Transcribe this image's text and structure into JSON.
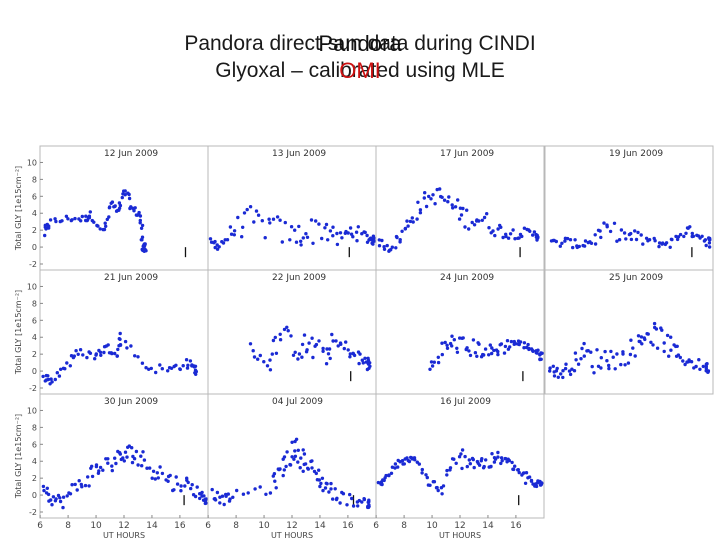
{
  "slide": {
    "title_line1": "Pandora direct-sun data during CINDI",
    "title_line2": "Glyoxal – calibrated using MLE",
    "overlay1": "Pandora",
    "overlay2": "OMI",
    "overlay1_color": "#111111",
    "overlay2_color": "#cc1111"
  },
  "chart_data": {
    "type": "scatter",
    "ylabel": "Total GLY [1e15cm⁻²]",
    "xlabel": "UT HOURS",
    "xlim": [
      6,
      18
    ],
    "ylim": [
      -2,
      11
    ],
    "y_ticks": [
      -2,
      0,
      2,
      4,
      6,
      8,
      10
    ],
    "x_ticks": [
      6,
      8,
      10,
      12,
      14,
      16
    ],
    "point_color": "#1a2ad4",
    "panels": [
      {
        "title": "12 Jun 2009",
        "omi": 16.4,
        "anchors": [
          [
            6.3,
            1.6,
            0.6
          ],
          [
            6.6,
            2.8,
            0.6
          ],
          [
            8.0,
            3.4,
            0.4
          ],
          [
            9.2,
            3.3,
            0.4
          ],
          [
            9.6,
            3.8,
            0.4
          ],
          [
            10.6,
            1.8,
            0.4
          ],
          [
            11.1,
            5.2,
            0.5
          ],
          [
            11.6,
            4.0,
            0.5
          ],
          [
            12.1,
            6.7,
            0.5
          ],
          [
            12.6,
            4.4,
            0.5
          ],
          [
            13.2,
            3.8,
            0.5
          ],
          [
            13.3,
            0.4,
            0.6
          ],
          [
            13.5,
            -0.2,
            0.6
          ]
        ]
      },
      {
        "title": "13 Jun 2009",
        "omi": 16.1,
        "anchors": [
          [
            6.2,
            0.6,
            0.6
          ],
          [
            6.8,
            0.2,
            0.6
          ],
          [
            7.8,
            2.0,
            1.2
          ],
          [
            9.0,
            3.2,
            1.6
          ],
          [
            10.5,
            2.3,
            1.8
          ],
          [
            12.0,
            1.4,
            1.4
          ],
          [
            13.0,
            1.6,
            1.6
          ],
          [
            14.3,
            2.5,
            1.8
          ],
          [
            15.3,
            0.8,
            0.8
          ],
          [
            16.3,
            2.0,
            1.0
          ],
          [
            17.2,
            1.2,
            0.8
          ],
          [
            17.8,
            0.8,
            0.5
          ]
        ]
      },
      {
        "title": "17 Jun 2009",
        "omi": 16.3,
        "anchors": [
          [
            6.2,
            0.6,
            0.5
          ],
          [
            7.0,
            -0.1,
            0.6
          ],
          [
            7.8,
            1.2,
            0.8
          ],
          [
            8.6,
            3.6,
            1.0
          ],
          [
            9.5,
            5.5,
            1.0
          ],
          [
            10.5,
            6.2,
            0.9
          ],
          [
            11.5,
            4.8,
            1.2
          ],
          [
            12.4,
            3.5,
            1.3
          ],
          [
            13.4,
            3.4,
            1.5
          ],
          [
            14.5,
            2.2,
            0.9
          ],
          [
            15.5,
            1.6,
            0.7
          ],
          [
            16.5,
            1.7,
            0.6
          ],
          [
            17.5,
            1.4,
            0.6
          ]
        ]
      },
      {
        "title": "19 Jun 2009",
        "omi": 16.5,
        "anchors": [
          [
            6.4,
            0.4,
            0.5
          ],
          [
            7.5,
            0.6,
            0.6
          ],
          [
            8.5,
            0.2,
            0.4
          ],
          [
            9.5,
            1.0,
            1.0
          ],
          [
            10.5,
            2.0,
            1.2
          ],
          [
            11.8,
            1.3,
            0.8
          ],
          [
            12.8,
            1.0,
            0.9
          ],
          [
            14.1,
            0.4,
            0.4
          ],
          [
            15.0,
            0.5,
            0.6
          ],
          [
            16.0,
            2.0,
            0.7
          ],
          [
            16.8,
            1.6,
            0.5
          ],
          [
            17.7,
            0.6,
            0.6
          ]
        ]
      },
      {
        "title": "21 Jun 2009",
        "omi": null,
        "anchors": [
          [
            6.3,
            -0.6,
            0.5
          ],
          [
            6.8,
            -1.2,
            0.6
          ],
          [
            7.8,
            0.6,
            0.7
          ],
          [
            8.8,
            2.2,
            0.5
          ],
          [
            10.0,
            1.8,
            0.5
          ],
          [
            10.7,
            2.8,
            0.5
          ],
          [
            11.6,
            2.2,
            0.5
          ],
          [
            11.8,
            4.2,
            0.4
          ],
          [
            13.5,
            0.5,
            0.5
          ],
          [
            15.3,
            0.1,
            0.6
          ],
          [
            16.4,
            1.0,
            0.6
          ],
          [
            17.1,
            0.2,
            0.6
          ]
        ]
      },
      {
        "title": "22 Jun 2009",
        "omi": 16.2,
        "anchors": [
          [
            9.0,
            2.8,
            0.5
          ],
          [
            10.4,
            1.0,
            1.6
          ],
          [
            11.2,
            4.4,
            1.4
          ],
          [
            12.4,
            2.6,
            1.4
          ],
          [
            13.2,
            3.0,
            1.8
          ],
          [
            14.3,
            1.8,
            1.4
          ],
          [
            15.0,
            3.2,
            1.4
          ],
          [
            16.0,
            2.6,
            0.8
          ],
          [
            16.8,
            1.4,
            1.0
          ],
          [
            17.5,
            0.8,
            0.8
          ]
        ]
      },
      {
        "title": "24 Jun 2009",
        "omi": 16.5,
        "anchors": [
          [
            9.8,
            0.3,
            0.8
          ],
          [
            10.8,
            2.6,
            1.0
          ],
          [
            11.6,
            3.4,
            1.2
          ],
          [
            12.6,
            2.7,
            1.2
          ],
          [
            13.4,
            2.6,
            1.0
          ],
          [
            14.2,
            2.2,
            0.9
          ],
          [
            15.0,
            2.8,
            0.9
          ],
          [
            15.8,
            3.4,
            0.5
          ],
          [
            16.5,
            3.1,
            0.4
          ],
          [
            17.2,
            2.6,
            0.4
          ],
          [
            17.8,
            1.8,
            0.5
          ]
        ]
      },
      {
        "title": "25 Jun 2009",
        "omi": null,
        "anchors": [
          [
            6.3,
            0.6,
            0.6
          ],
          [
            7.0,
            -0.4,
            0.7
          ],
          [
            7.8,
            0.4,
            0.8
          ],
          [
            8.6,
            2.3,
            1.2
          ],
          [
            9.5,
            1.2,
            1.5
          ],
          [
            10.5,
            1.6,
            1.5
          ],
          [
            11.5,
            1.4,
            1.1
          ],
          [
            12.5,
            3.0,
            1.3
          ],
          [
            13.2,
            4.5,
            1.3
          ],
          [
            14.0,
            4.2,
            1.4
          ],
          [
            14.8,
            3.0,
            1.5
          ],
          [
            15.6,
            1.8,
            1.0
          ],
          [
            16.5,
            1.0,
            0.7
          ],
          [
            17.6,
            0.4,
            0.6
          ]
        ]
      },
      {
        "title": "30 Jun 2009",
        "omi": 16.3,
        "anchors": [
          [
            6.2,
            1.2,
            0.7
          ],
          [
            6.8,
            -0.4,
            0.8
          ],
          [
            7.6,
            -0.8,
            0.7
          ],
          [
            8.6,
            1.0,
            1.0
          ],
          [
            9.6,
            2.4,
            1.2
          ],
          [
            10.4,
            3.4,
            1.1
          ],
          [
            11.3,
            4.0,
            1.2
          ],
          [
            12.0,
            4.6,
            1.2
          ],
          [
            12.7,
            5.0,
            1.2
          ],
          [
            13.5,
            3.8,
            1.4
          ],
          [
            14.5,
            2.8,
            1.4
          ],
          [
            15.5,
            1.4,
            1.1
          ],
          [
            16.4,
            1.4,
            0.8
          ],
          [
            17.3,
            0.4,
            0.8
          ],
          [
            17.8,
            -0.4,
            0.6
          ]
        ]
      },
      {
        "title": "04 Jul 2009",
        "omi": 16.4,
        "anchors": [
          [
            6.3,
            0.2,
            0.6
          ],
          [
            7.0,
            -0.6,
            0.6
          ],
          [
            7.7,
            -0.2,
            0.5
          ],
          [
            10.5,
            1.0,
            1.0
          ],
          [
            11.2,
            2.8,
            1.4
          ],
          [
            11.8,
            4.6,
            1.3
          ],
          [
            12.3,
            5.6,
            1.3
          ],
          [
            12.8,
            4.2,
            1.4
          ],
          [
            13.4,
            3.0,
            1.2
          ],
          [
            14.0,
            1.8,
            1.2
          ],
          [
            14.6,
            0.8,
            1.0
          ],
          [
            15.4,
            -0.2,
            0.8
          ],
          [
            16.6,
            -0.8,
            0.6
          ],
          [
            17.5,
            -1.0,
            0.5
          ]
        ]
      },
      {
        "title": "16 Jul 2009",
        "omi": 16.2,
        "anchors": [
          [
            6.2,
            1.2,
            0.6
          ],
          [
            6.8,
            2.2,
            0.6
          ],
          [
            7.5,
            3.6,
            0.5
          ],
          [
            8.2,
            4.1,
            0.4
          ],
          [
            8.8,
            4.2,
            0.3
          ],
          [
            9.8,
            1.6,
            0.8
          ],
          [
            10.6,
            0.4,
            0.8
          ],
          [
            11.5,
            3.4,
            1.2
          ],
          [
            12.4,
            4.6,
            1.2
          ],
          [
            13.2,
            4.0,
            1.1
          ],
          [
            13.9,
            3.6,
            0.9
          ],
          [
            14.6,
            4.4,
            0.8
          ],
          [
            15.3,
            4.0,
            0.6
          ],
          [
            16.0,
            3.2,
            0.6
          ],
          [
            16.7,
            2.0,
            0.7
          ],
          [
            17.3,
            1.2,
            0.5
          ],
          [
            17.8,
            1.5,
            0.4
          ]
        ]
      }
    ]
  }
}
